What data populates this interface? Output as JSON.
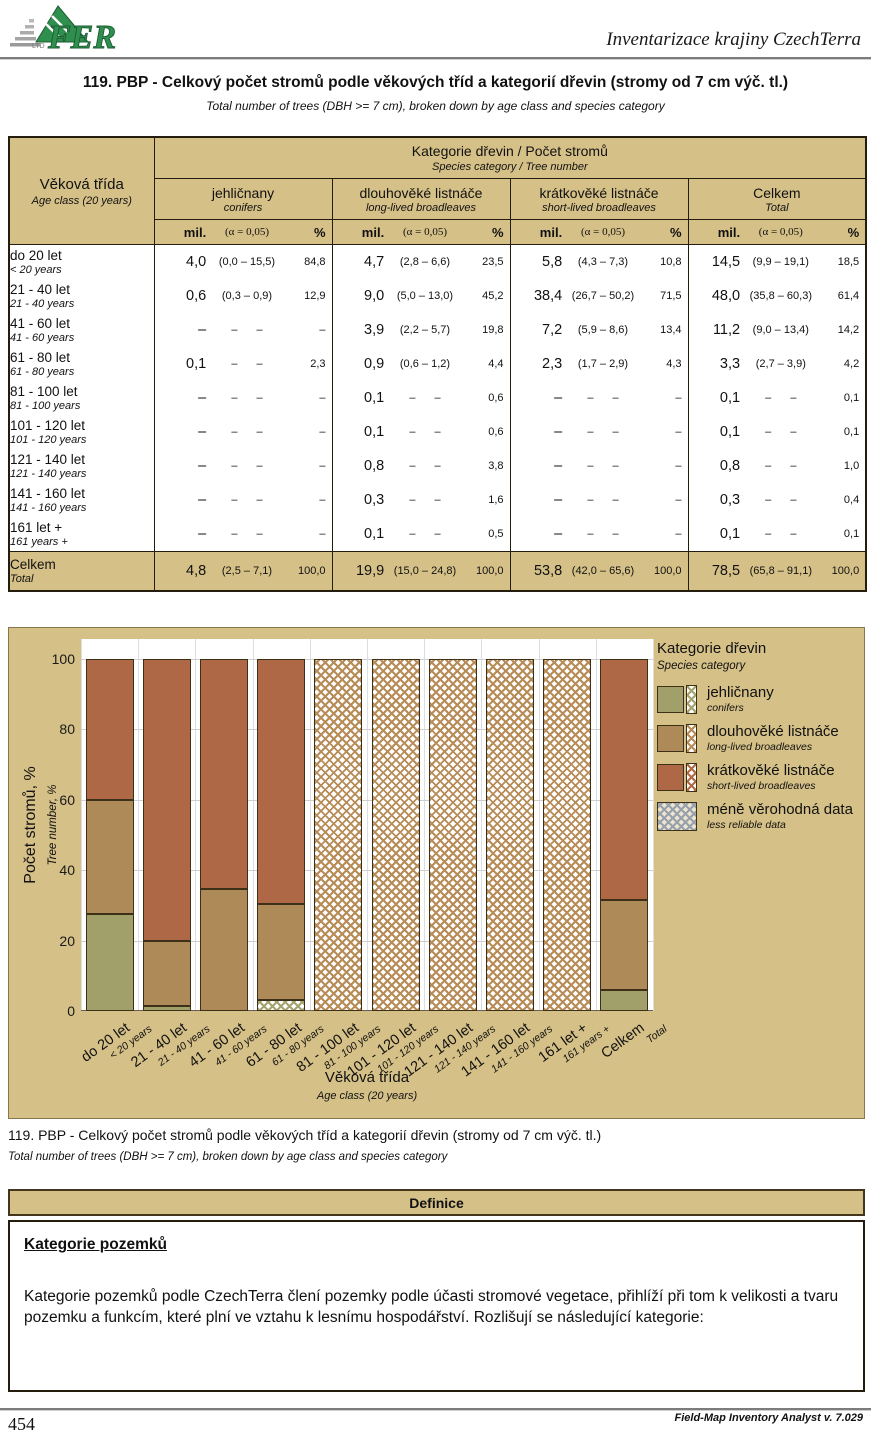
{
  "header": {
    "brand": "Inventarizace krajiny CzechTerra",
    "logo": "ifer-logo"
  },
  "title": {
    "cz": "119. PBP - Celkový počet stromů podle věkových tříd a kategorií dřevin (stromy od 7 cm výč. tl.)",
    "en": "Total number of trees (DBH >= 7 cm), broken down by age class and species category"
  },
  "table": {
    "corner": {
      "cz": "Věková třída",
      "en": "Age class (20 years)"
    },
    "span_header": {
      "cz": "Kategorie dřevin / Počet stromů",
      "en": "Species category / Tree number"
    },
    "groups": [
      {
        "cz": "jehličnany",
        "en": "conifers"
      },
      {
        "cz": "dlouhověké listnáče",
        "en": "long-lived broadleaves"
      },
      {
        "cz": "krátkověké listnáče",
        "en": "short-lived broadleaves"
      },
      {
        "cz": "Celkem",
        "en": "Total"
      }
    ],
    "subcols": {
      "mil": "mil.",
      "alpha": "(α = 0,05)",
      "pct": "%"
    },
    "rows": [
      {
        "cz": "do 20 let",
        "en": "< 20 years",
        "cells": [
          [
            "4,0",
            "(0,0 – 15,5)",
            "84,8"
          ],
          [
            "4,7",
            "(2,8 – 6,6)",
            "23,5"
          ],
          [
            "5,8",
            "(4,3 – 7,3)",
            "10,8"
          ],
          [
            "14,5",
            "(9,9 – 19,1)",
            "18,5"
          ]
        ]
      },
      {
        "cz": "21 - 40 let",
        "en": "21 - 40 years",
        "cells": [
          [
            "0,6",
            "(0,3 – 0,9)",
            "12,9"
          ],
          [
            "9,0",
            "(5,0 – 13,0)",
            "45,2"
          ],
          [
            "38,4",
            "(26,7 – 50,2)",
            "71,5"
          ],
          [
            "48,0",
            "(35,8 – 60,3)",
            "61,4"
          ]
        ]
      },
      {
        "cz": "41 - 60 let",
        "en": "41 - 60 years",
        "cells": [
          [
            "–",
            "– –",
            "–"
          ],
          [
            "3,9",
            "(2,2 – 5,7)",
            "19,8"
          ],
          [
            "7,2",
            "(5,9 – 8,6)",
            "13,4"
          ],
          [
            "11,2",
            "(9,0 – 13,4)",
            "14,2"
          ]
        ]
      },
      {
        "cz": "61 - 80 let",
        "en": "61 - 80 years",
        "cells": [
          [
            "0,1",
            "– –",
            "2,3"
          ],
          [
            "0,9",
            "(0,6 – 1,2)",
            "4,4"
          ],
          [
            "2,3",
            "(1,7 – 2,9)",
            "4,3"
          ],
          [
            "3,3",
            "(2,7 – 3,9)",
            "4,2"
          ]
        ]
      },
      {
        "cz": "81 - 100 let",
        "en": "81 - 100 years",
        "cells": [
          [
            "–",
            "– –",
            "–"
          ],
          [
            "0,1",
            "– –",
            "0,6"
          ],
          [
            "–",
            "– –",
            "–"
          ],
          [
            "0,1",
            "– –",
            "0,1"
          ]
        ]
      },
      {
        "cz": "101 - 120 let",
        "en": "101 - 120 years",
        "cells": [
          [
            "–",
            "– –",
            "–"
          ],
          [
            "0,1",
            "– –",
            "0,6"
          ],
          [
            "–",
            "– –",
            "–"
          ],
          [
            "0,1",
            "– –",
            "0,1"
          ]
        ]
      },
      {
        "cz": "121 - 140 let",
        "en": "121 - 140 years",
        "cells": [
          [
            "–",
            "– –",
            "–"
          ],
          [
            "0,8",
            "– –",
            "3,8"
          ],
          [
            "–",
            "– –",
            "–"
          ],
          [
            "0,8",
            "– –",
            "1,0"
          ]
        ]
      },
      {
        "cz": "141 - 160 let",
        "en": "141 - 160 years",
        "cells": [
          [
            "–",
            "– –",
            "–"
          ],
          [
            "0,3",
            "– –",
            "1,6"
          ],
          [
            "–",
            "– –",
            "–"
          ],
          [
            "0,3",
            "– –",
            "0,4"
          ]
        ]
      },
      {
        "cz": "161 let +",
        "en": "161 years +",
        "cells": [
          [
            "–",
            "– –",
            "–"
          ],
          [
            "0,1",
            "– –",
            "0,5"
          ],
          [
            "–",
            "– –",
            "–"
          ],
          [
            "0,1",
            "– –",
            "0,1"
          ]
        ]
      }
    ],
    "total_row": {
      "cz": "Celkem",
      "en": "Total",
      "cells": [
        [
          "4,8",
          "(2,5 – 7,1)",
          "100,0"
        ],
        [
          "19,9",
          "(15,0 – 24,8)",
          "100,0"
        ],
        [
          "53,8",
          "(42,0 – 65,6)",
          "100,0"
        ],
        [
          "78,5",
          "(65,8 – 91,1)",
          "100,0"
        ]
      ]
    }
  },
  "chart_data": {
    "type": "bar",
    "subtype": "stacked-100pct",
    "title_legend": {
      "cz": "Kategorie dřevin",
      "en": "Species category"
    },
    "ylabel": {
      "cz": "Počet stromů, %",
      "en": "Tree number, %"
    },
    "xlabel": {
      "cz": "Věková třída",
      "en": "Age class (20 years)"
    },
    "ylim": [
      0,
      100
    ],
    "yticks": [
      0,
      20,
      40,
      60,
      80,
      100
    ],
    "grid": "on",
    "legend_position": "right",
    "colors": {
      "jehlicnany": "#a1a06b",
      "dlouhoveke": "#ad8a58",
      "kratkoveke": "#ae6845"
    },
    "legend": [
      {
        "key": "jehlicnany",
        "cz": "jehličnany",
        "en": "conifers",
        "hatch_only": false
      },
      {
        "key": "dlouhoveke",
        "cz": "dlouhověké listnáče",
        "en": "long-lived broadleaves",
        "hatch_only": false
      },
      {
        "key": "kratkoveke",
        "cz": "krátkověké listnáče",
        "en": "short-lived broadleaves",
        "hatch_only": false
      },
      {
        "key": "mene",
        "cz": "méně věrohodná data",
        "en": "less reliable data",
        "hatch_only": true
      }
    ],
    "bars": [
      {
        "cz": "do 20 let",
        "en": "< 20 years",
        "segments": [
          {
            "cat": "jehlicnany",
            "pct": 27.6,
            "hatch": false
          },
          {
            "cat": "dlouhoveke",
            "pct": 32.4,
            "hatch": false
          },
          {
            "cat": "kratkoveke",
            "pct": 40.0,
            "hatch": false
          }
        ]
      },
      {
        "cz": "21 - 40 let",
        "en": "21 - 40 years",
        "segments": [
          {
            "cat": "jehlicnany",
            "pct": 1.3,
            "hatch": false
          },
          {
            "cat": "dlouhoveke",
            "pct": 18.7,
            "hatch": false
          },
          {
            "cat": "kratkoveke",
            "pct": 80.0,
            "hatch": false
          }
        ]
      },
      {
        "cz": "41 - 60 let",
        "en": "41 - 60 years",
        "segments": [
          {
            "cat": "dlouhoveke",
            "pct": 34.8,
            "hatch": false
          },
          {
            "cat": "kratkoveke",
            "pct": 65.2,
            "hatch": false
          }
        ]
      },
      {
        "cz": "61 - 80 let",
        "en": "61 - 80 years",
        "segments": [
          {
            "cat": "jehlicnany",
            "pct": 3.0,
            "hatch": true
          },
          {
            "cat": "dlouhoveke",
            "pct": 27.3,
            "hatch": false
          },
          {
            "cat": "kratkoveke",
            "pct": 69.7,
            "hatch": false
          }
        ]
      },
      {
        "cz": "81 - 100 let",
        "en": "81 - 100 years",
        "segments": [
          {
            "cat": "dlouhoveke",
            "pct": 100,
            "hatch": true
          }
        ]
      },
      {
        "cz": "101 - 120 let",
        "en": "101 - 120 years",
        "segments": [
          {
            "cat": "dlouhoveke",
            "pct": 100,
            "hatch": true
          }
        ]
      },
      {
        "cz": "121 - 140 let",
        "en": "121 - 140 years",
        "segments": [
          {
            "cat": "dlouhoveke",
            "pct": 100,
            "hatch": true
          }
        ]
      },
      {
        "cz": "141 - 160 let",
        "en": "141 - 160 years",
        "segments": [
          {
            "cat": "dlouhoveke",
            "pct": 100,
            "hatch": true
          }
        ]
      },
      {
        "cz": "161 let +",
        "en": "161 years +",
        "segments": [
          {
            "cat": "dlouhoveke",
            "pct": 100,
            "hatch": true
          }
        ]
      },
      {
        "cz": "Celkem",
        "en": "Total",
        "segments": [
          {
            "cat": "jehlicnany",
            "pct": 6.1,
            "hatch": false
          },
          {
            "cat": "dlouhoveke",
            "pct": 25.4,
            "hatch": false
          },
          {
            "cat": "kratkoveke",
            "pct": 68.5,
            "hatch": false
          }
        ]
      }
    ]
  },
  "caption": {
    "cz": "119. PBP - Celkový počet stromů podle věkových tříd a kategorií dřevin (stromy od 7 cm výč. tl.)",
    "en": "Total number of trees (DBH >= 7 cm), broken down by age class and species category"
  },
  "definice": {
    "banner": "Definice",
    "heading": "Kategorie pozemků",
    "paragraph": "Kategorie pozemků podle CzechTerra člení pozemky podle účasti stromové vegetace, přihlíží při tom k velikosti a tvaru pozemku a funkcím, které plní ve vztahu k lesnímu hospodářství. Rozlišují se následující kategorie:"
  },
  "footer": {
    "page": "454",
    "app": "Field-Map Inventory Analyst v. 7.029"
  }
}
